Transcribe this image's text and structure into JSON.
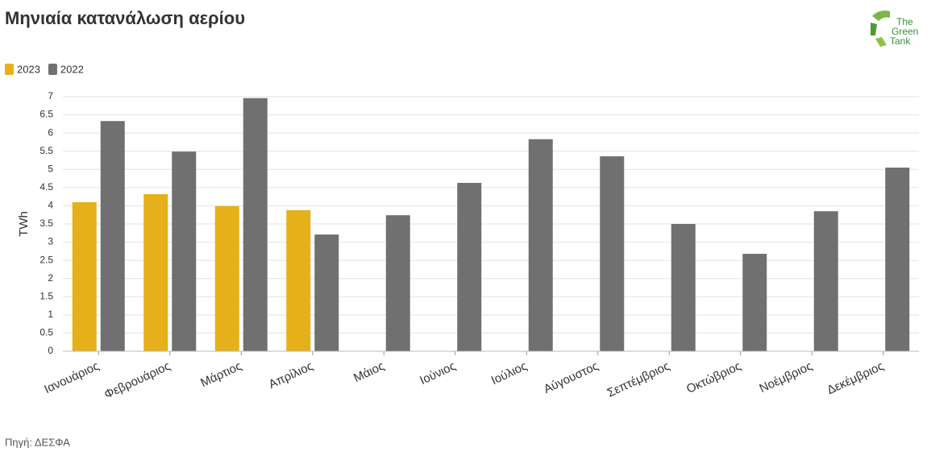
{
  "chart_data": {
    "type": "bar",
    "title": "Μηνιαία κατανάλωση αερίου",
    "ylabel": "TWh",
    "source": "Πηγή: ΔΕΣΦΑ",
    "logo": [
      "The",
      "Green",
      "Tank"
    ],
    "categories": [
      "Ιανουάριος",
      "Φεβρουάριος",
      "Μάρτιος",
      "Απρίλιος",
      "Μάιος",
      "Ιούνιος",
      "Ιούλιος",
      "Αύγουστος",
      "Σεπτέμβριος",
      "Οκτώβριος",
      "Νοέμβριος",
      "Δεκέμβριος"
    ],
    "series": [
      {
        "name": "2023",
        "color": "#e6b01a",
        "values": [
          4.1,
          4.32,
          3.99,
          3.88,
          null,
          null,
          null,
          null,
          null,
          null,
          null,
          null
        ]
      },
      {
        "name": "2022",
        "color": "#707070",
        "values": [
          6.33,
          5.49,
          6.96,
          3.21,
          3.74,
          4.63,
          5.83,
          5.36,
          3.5,
          2.68,
          3.85,
          5.05
        ]
      }
    ],
    "ylim": [
      0,
      7
    ],
    "yticks": [
      0,
      0.5,
      1,
      1.5,
      2,
      2.5,
      3,
      3.5,
      4,
      4.5,
      5,
      5.5,
      6,
      6.5,
      7
    ],
    "grid": true
  }
}
